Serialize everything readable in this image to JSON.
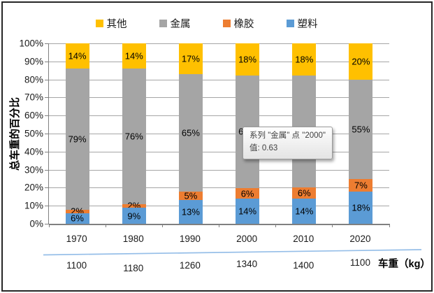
{
  "legend": {
    "items": [
      {
        "label": "其他",
        "color": "#FFC000"
      },
      {
        "label": "金属",
        "color": "#A5A5A5"
      },
      {
        "label": "橡胶",
        "color": "#ED7D31"
      },
      {
        "label": "塑料",
        "color": "#5B9BD5"
      }
    ]
  },
  "y_axis": {
    "title": "总车重的百分比",
    "ticks": [
      "100%",
      "90%",
      "80%",
      "70%",
      "60%",
      "50%",
      "40%",
      "30%",
      "20%",
      "10%",
      "0%"
    ]
  },
  "chart_data": {
    "type": "bar",
    "stacked": true,
    "normalized_to_100pct": true,
    "title": "",
    "xlabel": "",
    "ylabel": "总车重的百分比",
    "ylim": [
      0,
      100
    ],
    "grid": true,
    "legend_position": "top",
    "categories": [
      "1970",
      "1980",
      "1990",
      "2000",
      "2010",
      "2020"
    ],
    "series": [
      {
        "name": "其他",
        "color": "#FFC000",
        "values": [
          14,
          14,
          17,
          18,
          18,
          20
        ],
        "labels": [
          "14%",
          "14%",
          "17%",
          "18%",
          "18%",
          "20%"
        ]
      },
      {
        "name": "金属",
        "color": "#A5A5A5",
        "values": [
          79,
          76,
          65,
          63,
          62,
          55
        ],
        "labels": [
          "79%",
          "76%",
          "65%",
          "63%",
          "",
          "55%"
        ]
      },
      {
        "name": "橡胶",
        "color": "#ED7D31",
        "values": [
          2,
          2,
          5,
          6,
          6,
          7
        ],
        "labels": [
          "2%",
          "2%",
          "5%",
          "6%",
          "6%",
          "7%"
        ]
      },
      {
        "name": "塑料",
        "color": "#5B9BD5",
        "values": [
          6,
          9,
          13,
          14,
          14,
          18
        ],
        "labels": [
          "6%",
          "9%",
          "13%",
          "14%",
          "14%",
          "18%"
        ]
      }
    ],
    "secondary_axis": {
      "label": "车重（kg）",
      "values": [
        "1100",
        "1180",
        "1260",
        "1340",
        "1400",
        "1100"
      ]
    }
  },
  "tooltip": {
    "line1": "系列 \"金属\" 点 \"2000\"",
    "line2": "值: 0.63"
  },
  "colors": {
    "gridline": "#A6A6A6",
    "axis": "#808080",
    "divider_line": "#95BEE8"
  }
}
